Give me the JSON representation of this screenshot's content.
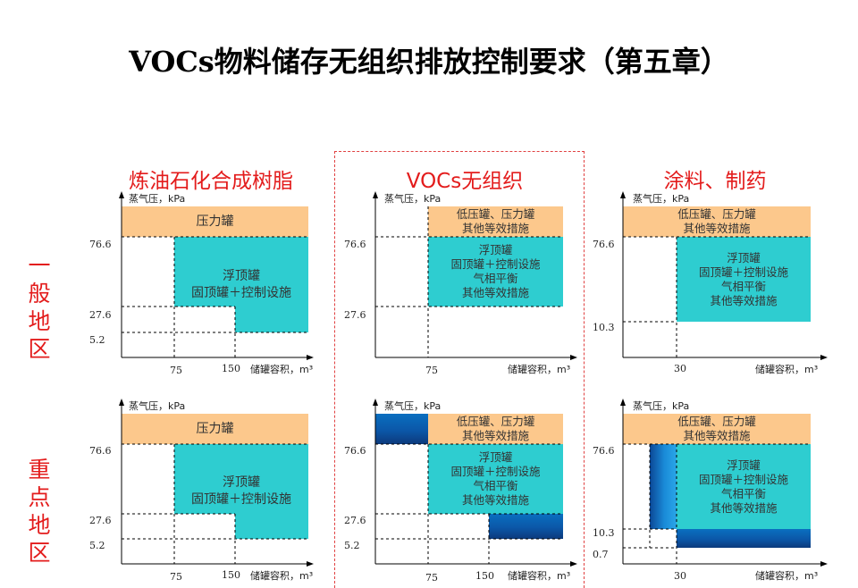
{
  "title": "VOCs物料储存无组织排放控制要求（第五章）",
  "columns": [
    "炼油石化合成树脂",
    "VOCs无组织",
    "涂料、制药"
  ],
  "rows": [
    "一般地区",
    "重点地区"
  ],
  "axis": {
    "ylabel": "蒸气压，kPa",
    "xlabel": "储罐容积，m³"
  },
  "panels": [
    {
      "name": "refining-general",
      "y_ticks": [
        "76.6",
        "27.6",
        "5.2"
      ],
      "x_ticks": [
        "75",
        "150"
      ],
      "regions": [
        {
          "color": "orange",
          "lines": [
            "压力罐"
          ]
        },
        {
          "color": "teal",
          "lines": [
            "浮顶罐",
            "固顶罐＋控制设施"
          ]
        }
      ]
    },
    {
      "name": "vocs-general",
      "y_ticks": [
        "76.6",
        "27.6"
      ],
      "x_ticks": [
        "75"
      ],
      "regions": [
        {
          "color": "orange",
          "lines": [
            "低压罐、压力罐",
            "其他等效措施"
          ]
        },
        {
          "color": "teal",
          "lines": [
            "浮顶罐",
            "固顶罐＋控制设施",
            "气相平衡",
            "其他等效措施"
          ]
        }
      ]
    },
    {
      "name": "coatings-general",
      "y_ticks": [
        "76.6",
        "10.3"
      ],
      "x_ticks": [
        "30"
      ],
      "regions": [
        {
          "color": "orange",
          "lines": [
            "低压罐、压力罐",
            "其他等效措施"
          ]
        },
        {
          "color": "teal",
          "lines": [
            "浮顶罐",
            "固顶罐＋控制设施",
            "气相平衡",
            "其他等效措施"
          ]
        }
      ]
    },
    {
      "name": "refining-key",
      "y_ticks": [
        "76.6",
        "27.6",
        "5.2"
      ],
      "x_ticks": [
        "75",
        "150"
      ],
      "regions": [
        {
          "color": "orange",
          "lines": [
            "压力罐"
          ]
        },
        {
          "color": "teal",
          "lines": [
            "浮顶罐",
            "固顶罐＋控制设施"
          ]
        }
      ]
    },
    {
      "name": "vocs-key",
      "y_ticks": [
        "76.6",
        "27.6",
        "5.2"
      ],
      "x_ticks": [
        "75",
        "150"
      ],
      "regions": [
        {
          "color": "orange",
          "lines": [
            "低压罐、压力罐",
            "其他等效措施"
          ]
        },
        {
          "color": "teal",
          "lines": [
            "浮顶罐",
            "固顶罐＋控制设施",
            "气相平衡",
            "其他等效措施"
          ]
        }
      ]
    },
    {
      "name": "coatings-key",
      "y_ticks": [
        "76.6",
        "10.3",
        "0.7"
      ],
      "x_ticks": [
        "30"
      ],
      "regions": [
        {
          "color": "orange",
          "lines": [
            "低压罐、压力罐",
            "其他等效措施"
          ]
        },
        {
          "color": "teal",
          "lines": [
            "浮顶罐",
            "固顶罐＋控制设施",
            "气相平衡",
            "其他等效措施"
          ]
        }
      ]
    }
  ]
}
